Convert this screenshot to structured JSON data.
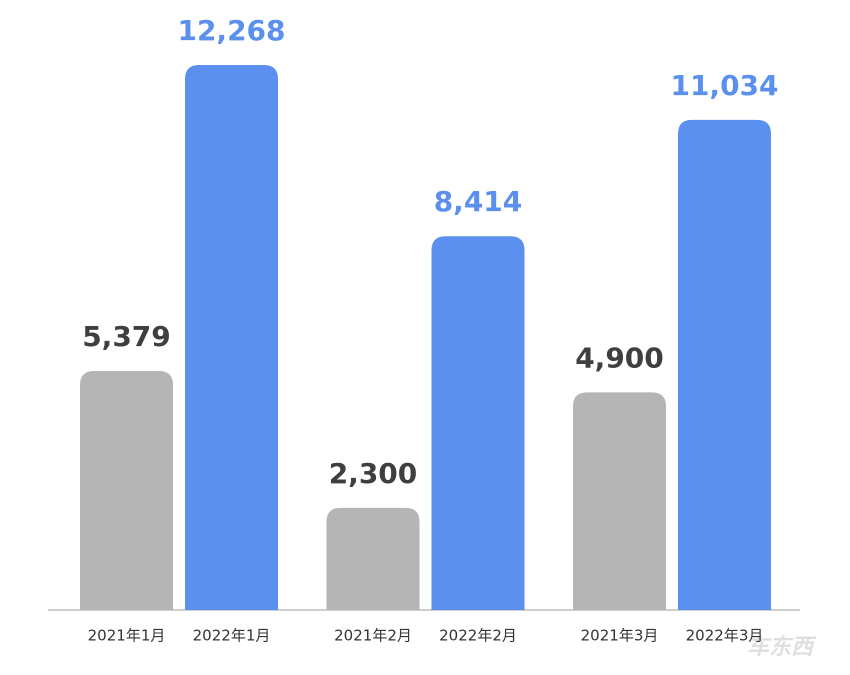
{
  "chart_data": {
    "type": "bar",
    "categories": [
      "2021年1月",
      "2022年1月",
      "2021年2月",
      "2022年2月",
      "2021年3月",
      "2022年3月"
    ],
    "values": [
      5379,
      12268,
      2300,
      8414,
      4900,
      11034
    ],
    "value_labels": [
      "5,379",
      "12,268",
      "2,300",
      "8,414",
      "4,900",
      "11,034"
    ],
    "colors": [
      "#b5b5b5",
      "#5b90ef",
      "#b5b5b5",
      "#5b90ef",
      "#b5b5b5",
      "#5b90ef"
    ],
    "value_label_colors": [
      "#3f3f3f",
      "#5b90ef",
      "#3f3f3f",
      "#5b90ef",
      "#3f3f3f",
      "#5b90ef"
    ],
    "watermark": "车东西"
  }
}
